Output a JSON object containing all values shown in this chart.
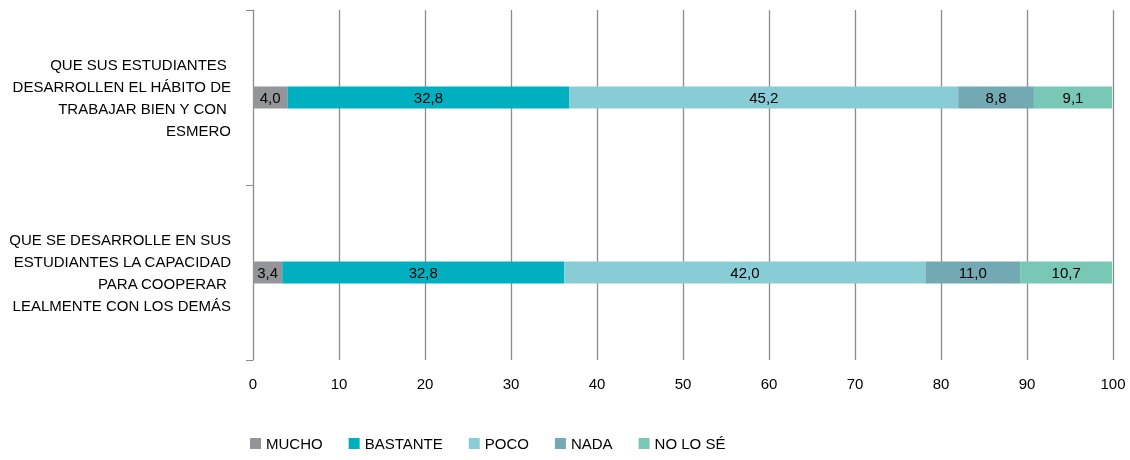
{
  "chart_data": {
    "type": "bar",
    "orientation": "horizontal",
    "stacked": true,
    "categories": [
      "QUE SUS ESTUDIANTES DESARROLLEN EL HÁBITO DE TRABAJAR BIEN Y CON ESMERO",
      "QUE SE DESARROLLE EN SUS ESTUDIANTES LA CAPACIDAD PARA COOPERAR LEALMENTE CON LOS DEMÁS"
    ],
    "series": [
      {
        "name": "MUCHO",
        "color": "#939598",
        "values": [
          4.0,
          3.4
        ],
        "value_labels": [
          "4,0",
          "3,4"
        ]
      },
      {
        "name": "BASTANTE",
        "color": "#00b0c1",
        "values": [
          32.8,
          32.8
        ],
        "value_labels": [
          "32,8",
          "32,8"
        ]
      },
      {
        "name": "POCO",
        "color": "#88cdd6",
        "values": [
          45.2,
          42.0
        ],
        "value_labels": [
          "45,2",
          "42,0"
        ]
      },
      {
        "name": "NADA",
        "color": "#72a9b2",
        "values": [
          8.8,
          11.0
        ],
        "value_labels": [
          "8,8",
          "11,0"
        ]
      },
      {
        "name": "NO LO SÉ",
        "color": "#79c8b6",
        "values": [
          9.1,
          10.7
        ],
        "value_labels": [
          "9,1",
          "10,7"
        ]
      }
    ],
    "xlim": [
      0,
      100
    ],
    "xticks": [
      0,
      10,
      20,
      30,
      40,
      50,
      60,
      70,
      80,
      90,
      100
    ],
    "grid": "x",
    "legend": "bottom"
  }
}
